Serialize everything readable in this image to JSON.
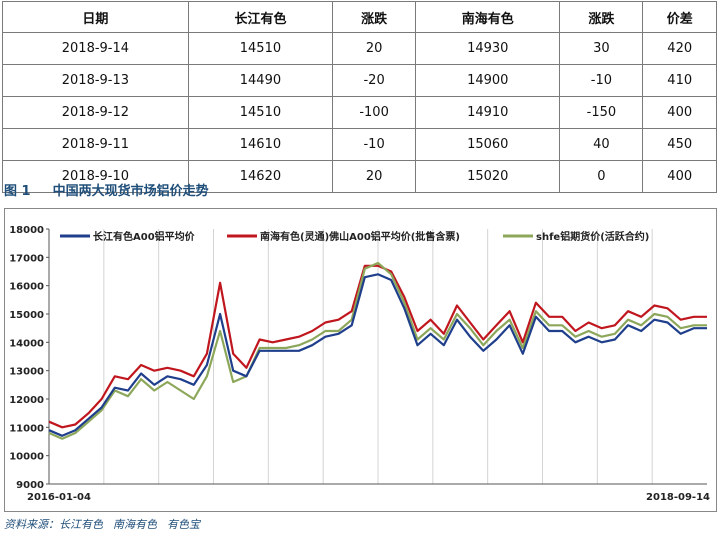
{
  "table": {
    "headers": [
      "日期",
      "长江有色",
      "涨跌",
      "南海有色",
      "涨跌",
      "价差"
    ],
    "rows": [
      [
        "2018-9-14",
        "14510",
        "20",
        "14930",
        "30",
        "420"
      ],
      [
        "2018-9-13",
        "14490",
        "-20",
        "14900",
        "-10",
        "410"
      ],
      [
        "2018-9-12",
        "14510",
        "-100",
        "14910",
        "-150",
        "400"
      ],
      [
        "2018-9-11",
        "14610",
        "-10",
        "15060",
        "40",
        "450"
      ],
      [
        "2018-9-10",
        "14620",
        "20",
        "15020",
        "0",
        "400"
      ]
    ]
  },
  "figure": {
    "number": "图 1",
    "title": "中国两大现货市场铝价走势"
  },
  "source": {
    "prefix": "资料来源：长江有色",
    "item2": "南海有色",
    "item3": "有色宝"
  },
  "chart_data": {
    "type": "line",
    "title": "中国两大现货市场铝价走势",
    "xlabel": "",
    "ylabel": "",
    "x_start_label": "2016-01-04",
    "x_end_label": "2018-09-14",
    "ylim": [
      9000,
      18000
    ],
    "yticks": [
      "18000",
      "17000",
      "16000",
      "15000",
      "14000",
      "13000",
      "12000",
      "11000",
      "10000",
      "9000"
    ],
    "grid": "vertical",
    "legend_position": "top",
    "x": [
      0,
      2,
      4,
      6,
      8,
      10,
      12,
      14,
      16,
      18,
      20,
      22,
      24,
      26,
      28,
      30,
      32,
      34,
      36,
      38,
      40,
      42,
      44,
      46,
      48,
      50,
      52,
      54,
      56,
      58,
      60,
      62,
      64,
      66,
      68,
      70,
      72,
      74,
      76,
      78,
      80,
      82,
      84,
      86,
      88,
      90,
      92,
      94,
      96,
      98,
      100
    ],
    "series": [
      {
        "name": "长江有色A00铝平均价",
        "color": "#1f3f8c",
        "values": [
          10900,
          10700,
          10900,
          11300,
          11700,
          12400,
          12300,
          12900,
          12500,
          12800,
          12700,
          12500,
          13200,
          15000,
          13000,
          12800,
          13700,
          13700,
          13700,
          13700,
          13900,
          14200,
          14300,
          14600,
          16300,
          16400,
          16200,
          15200,
          13900,
          14300,
          13900,
          14800,
          14200,
          13700,
          14100,
          14600,
          13600,
          14900,
          14400,
          14400,
          14000,
          14200,
          14000,
          14100,
          14600,
          14400,
          14800,
          14700,
          14300,
          14500,
          14500
        ]
      },
      {
        "name": "南海有色(灵通)佛山A00铝平均价(批售含票)",
        "color": "#c0161e",
        "values": [
          11200,
          11000,
          11100,
          11500,
          12000,
          12800,
          12700,
          13200,
          13000,
          13100,
          13000,
          12800,
          13600,
          16100,
          13600,
          13100,
          14100,
          14000,
          14100,
          14200,
          14400,
          14700,
          14800,
          15100,
          16700,
          16700,
          16500,
          15600,
          14400,
          14800,
          14300,
          15300,
          14700,
          14100,
          14600,
          15100,
          14000,
          15400,
          14900,
          14900,
          14400,
          14700,
          14500,
          14600,
          15100,
          14900,
          15300,
          15200,
          14800,
          14900,
          14900
        ]
      },
      {
        "name": "shfe铝期货价(活跃合约)",
        "color": "#8ca75a",
        "values": [
          10800,
          10600,
          10800,
          11200,
          11600,
          12300,
          12100,
          12700,
          12300,
          12600,
          12300,
          12000,
          12800,
          14400,
          12600,
          12800,
          13800,
          13800,
          13800,
          13900,
          14100,
          14400,
          14400,
          14800,
          16600,
          16800,
          16400,
          15400,
          14100,
          14500,
          14100,
          15000,
          14500,
          13900,
          14400,
          14800,
          13800,
          15100,
          14600,
          14600,
          14200,
          14400,
          14200,
          14300,
          14800,
          14600,
          15000,
          14900,
          14500,
          14600,
          14600
        ]
      }
    ]
  }
}
